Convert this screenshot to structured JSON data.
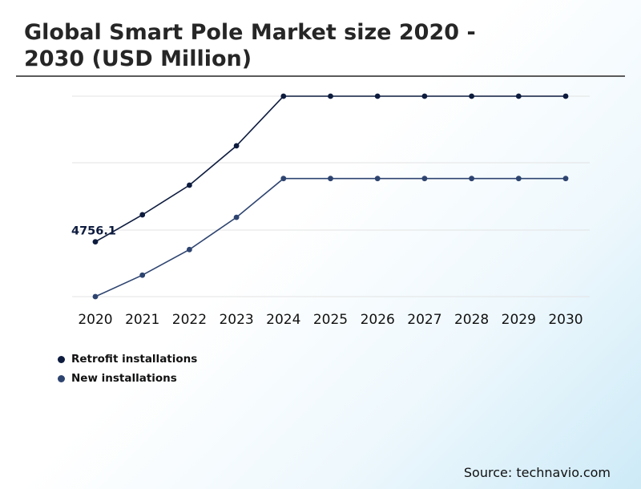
{
  "title": "Global Smart Pole Market size 2020 - 2030 (USD Million)",
  "source": "Source: technavio.com",
  "colors": {
    "series1": "#0d1b3e",
    "series2": "#2e4470",
    "grid": "#e3e3e3"
  },
  "chart_data": {
    "type": "line",
    "x": [
      "2020",
      "2021",
      "2022",
      "2023",
      "2024",
      "2025",
      "2026",
      "2027",
      "2028",
      "2029",
      "2030"
    ],
    "series": [
      {
        "name": "Retrofit installations",
        "values": [
          4756.1,
          5020,
          5310,
          5695,
          6180,
          6180,
          6180,
          6180,
          6180,
          6180,
          6180
        ]
      },
      {
        "name": "New installations",
        "values": [
          4220,
          4430,
          4680,
          4995,
          5375,
          5375,
          5375,
          5375,
          5375,
          5375,
          5375
        ]
      }
    ],
    "annotations": [
      {
        "series": 0,
        "index": 0,
        "text": "4756.1"
      }
    ],
    "ylim": [
      4220,
      6180
    ],
    "grid": true,
    "yticks_visible": false,
    "legend_position": "bottom-left"
  }
}
